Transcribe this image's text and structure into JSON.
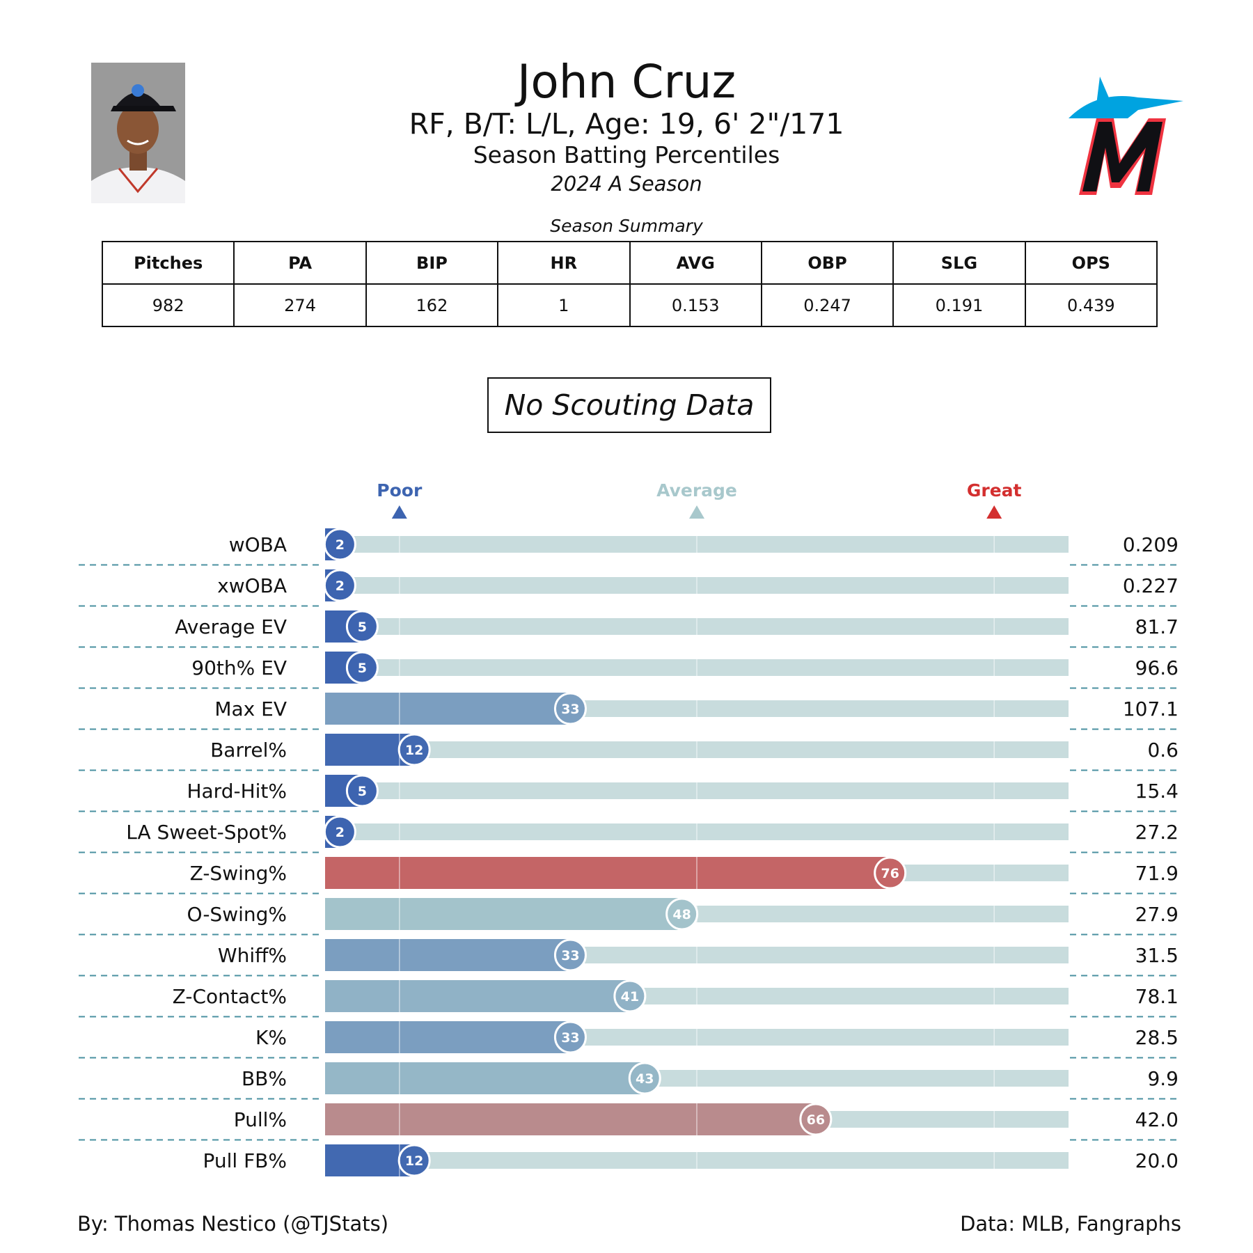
{
  "header": {
    "name": "John Cruz",
    "bio": "RF, B/T: L/L, Age: 19, 6' 2\"/171",
    "subtitle": "Season Batting Percentiles",
    "season": "2024 A Season"
  },
  "summary": {
    "title": "Season Summary",
    "columns": [
      "Pitches",
      "PA",
      "BIP",
      "HR",
      "AVG",
      "OBP",
      "SLG",
      "OPS"
    ],
    "values": [
      "982",
      "274",
      "162",
      "1",
      "0.153",
      "0.247",
      "0.191",
      "0.439"
    ]
  },
  "scouting": {
    "label": "No Scouting Data"
  },
  "colors": {
    "poor": "#3d64b0",
    "average": "#a8c8cc",
    "great": "#d32f2f",
    "track": "#c8dcdd",
    "divider": "#4a90a0"
  },
  "chart_data": {
    "type": "bar",
    "title": "Season Batting Percentiles",
    "xlim": [
      0,
      100
    ],
    "scale_labels": [
      {
        "label": "Poor",
        "value": 10
      },
      {
        "label": "Average",
        "value": 50
      },
      {
        "label": "Great",
        "value": 90
      }
    ],
    "categories": [
      "wOBA",
      "xwOBA",
      "Average EV",
      "90th% EV",
      "Max EV",
      "Barrel%",
      "Hard-Hit%",
      "LA Sweet-Spot%",
      "Z-Swing%",
      "O-Swing%",
      "Whiff%",
      "Z-Contact%",
      "K%",
      "BB%",
      "Pull%",
      "Pull FB%"
    ],
    "percentiles": [
      2,
      2,
      5,
      5,
      33,
      12,
      5,
      2,
      76,
      48,
      33,
      41,
      33,
      43,
      66,
      12
    ],
    "stat_values": [
      "0.209",
      "0.227",
      "81.7",
      "96.6",
      "107.1",
      "0.6",
      "15.4",
      "27.2",
      "71.9",
      "27.9",
      "31.5",
      "78.1",
      "28.5",
      "9.9",
      "42.0",
      "20.0"
    ]
  },
  "footer": {
    "left": "By: Thomas Nestico (@TJStats)",
    "right": "Data: MLB, Fangraphs"
  }
}
